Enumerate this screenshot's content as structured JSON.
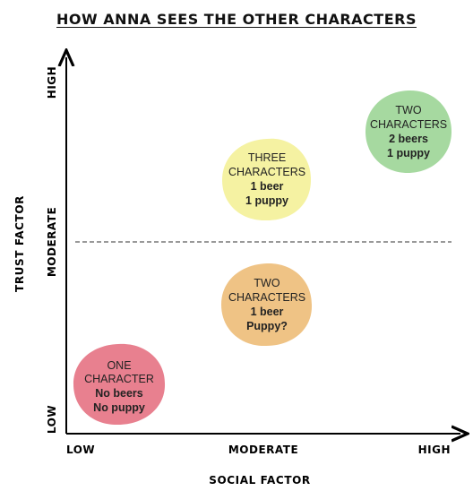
{
  "title": "HOW ANNA SEES THE OTHER CHARACTERS",
  "x_axis": {
    "title": "SOCIAL FACTOR",
    "ticks": [
      "LOW",
      "MODERATE",
      "HIGH"
    ]
  },
  "y_axis": {
    "title": "TRUST FACTOR",
    "ticks": [
      "LOW",
      "MODERATE",
      "HIGH"
    ]
  },
  "divider": "dashed line at moderate trust",
  "groups": [
    {
      "id": "one",
      "color": "#e8808f",
      "social": "LOW",
      "trust": "LOW",
      "lines": [
        {
          "text": "ONE",
          "bold": false
        },
        {
          "text": "CHARACTER",
          "bold": false
        },
        {
          "text": "No beers",
          "bold": true
        },
        {
          "text": "No puppy",
          "bold": true
        }
      ]
    },
    {
      "id": "two-moderate",
      "color": "#efc385",
      "social": "MODERATE",
      "trust": "below MODERATE",
      "lines": [
        {
          "text": "TWO",
          "bold": false
        },
        {
          "text": "CHARACTERS",
          "bold": false
        },
        {
          "text": "1 beer",
          "bold": true
        },
        {
          "text": "Puppy?",
          "bold": true
        }
      ]
    },
    {
      "id": "three",
      "color": "#f5f2a2",
      "social": "MODERATE",
      "trust": "above MODERATE",
      "lines": [
        {
          "text": "THREE",
          "bold": false
        },
        {
          "text": "CHARACTERS",
          "bold": false
        },
        {
          "text": "1 beer",
          "bold": true
        },
        {
          "text": "1 puppy",
          "bold": true
        }
      ]
    },
    {
      "id": "two-high",
      "color": "#a6d9a0",
      "social": "HIGH",
      "trust": "HIGH",
      "lines": [
        {
          "text": "TWO",
          "bold": false
        },
        {
          "text": "CHARACTERS",
          "bold": false
        },
        {
          "text": "2 beers",
          "bold": true
        },
        {
          "text": "1 puppy",
          "bold": true
        }
      ]
    }
  ]
}
